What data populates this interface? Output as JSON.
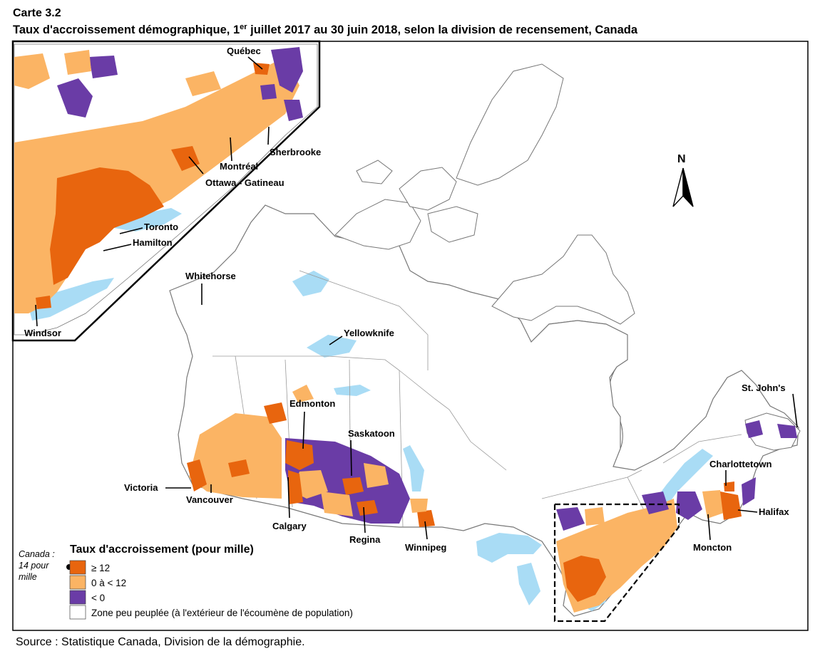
{
  "header": {
    "map_number": "Carte 3.2",
    "title_part1": "Taux d'accroissement démographique, 1",
    "title_sup": "er",
    "title_part2": " juillet 2017 au 30 juin 2018, selon la division de recensement, Canada"
  },
  "source": "Source : Statistique Canada, Division de la démographie.",
  "north_arrow": {
    "letter": "N",
    "icon": "north-arrow-icon"
  },
  "cities_main": [
    "Whitehorse",
    "Yellowknife",
    "Edmonton",
    "Saskatoon",
    "Victoria",
    "Vancouver",
    "Calgary",
    "Regina",
    "Winnipeg",
    "St. John's",
    "Charlottetown",
    "Halifax",
    "Moncton"
  ],
  "cities_inset": [
    "Québec",
    "Sherbrooke",
    "Montréal",
    "Ottawa - Gatineau",
    "Toronto",
    "Hamilton",
    "Windsor"
  ],
  "legend": {
    "title": "Taux d'accroissement (pour mille)",
    "canada_note": [
      "Canada :",
      "14 pour",
      "mille"
    ],
    "items": [
      {
        "label": "≥ 12",
        "color": "#e8650e"
      },
      {
        "label": "0 à < 12",
        "color": "#fbb464"
      },
      {
        "label": "< 0",
        "color": "#6a3ca6"
      },
      {
        "label": "Zone peu peuplée (à l'extérieur de l'écoumène de population)",
        "color": "#ffffff"
      }
    ]
  },
  "colors": {
    "water": "#a9dcf5",
    "high": "#e8650e",
    "mid": "#fbb464",
    "low": "#6a3ca6",
    "boundary": "#9a9a9a"
  }
}
